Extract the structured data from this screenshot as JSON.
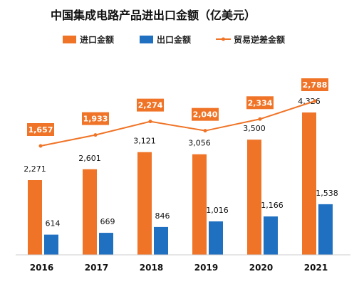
{
  "chart_data": {
    "type": "bar",
    "title": "中国集成电路产品进出口金额（亿美元）",
    "legend_position": "top",
    "grid": false,
    "categories": [
      "2016",
      "2017",
      "2018",
      "2019",
      "2020",
      "2021"
    ],
    "series": [
      {
        "name": "进口金额",
        "kind": "bar",
        "values": [
          2271,
          2601,
          3121,
          3056,
          3500,
          4326
        ],
        "labels": [
          "2,271",
          "2,601",
          "3,121",
          "3,056",
          "3,500",
          "4,326"
        ]
      },
      {
        "name": "出口金额",
        "kind": "bar",
        "values": [
          614,
          669,
          846,
          1016,
          1166,
          1538
        ],
        "labels": [
          "614",
          "669",
          "846",
          "1,016",
          "1,166",
          "1,538"
        ]
      },
      {
        "name": "贸易逆差金额",
        "kind": "line",
        "values": [
          1657,
          1933,
          2274,
          2040,
          2334,
          2788
        ],
        "labels": [
          "1,657",
          "1,933",
          "2,274",
          "2,040",
          "2,334",
          "2,788"
        ]
      }
    ],
    "colors": {
      "import": "#f07427",
      "export": "#1f70c1",
      "deficit": "#f07427"
    }
  }
}
